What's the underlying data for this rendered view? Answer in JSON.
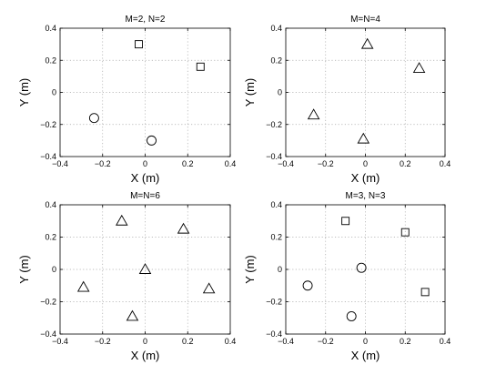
{
  "chart_data": [
    {
      "type": "scatter",
      "title": "M=2, N=2",
      "xlabel": "X (m)",
      "ylabel": "Y (m)",
      "xlim": [
        -0.4,
        0.4
      ],
      "ylim": [
        -0.4,
        0.4
      ],
      "xticks": [
        -0.4,
        -0.2,
        0,
        0.2,
        0.4
      ],
      "yticks": [
        -0.4,
        -0.2,
        0,
        0.2,
        0.4
      ],
      "xtick_labels": [
        "−0.4",
        "−0.2",
        "0",
        "0.2",
        "0.4"
      ],
      "ytick_labels": [
        "−0.4",
        "−0.2",
        "0",
        "0.2",
        "0.4"
      ],
      "grid": true,
      "series": [
        {
          "marker": "square",
          "points": [
            {
              "x": -0.03,
              "y": 0.3
            },
            {
              "x": 0.26,
              "y": 0.16
            }
          ]
        },
        {
          "marker": "circle",
          "points": [
            {
              "x": -0.24,
              "y": -0.16
            },
            {
              "x": 0.03,
              "y": -0.3
            }
          ]
        }
      ]
    },
    {
      "type": "scatter",
      "title": "M=N=4",
      "xlabel": "X (m)",
      "ylabel": "Y (m)",
      "xlim": [
        -0.4,
        0.4
      ],
      "ylim": [
        -0.4,
        0.4
      ],
      "xticks": [
        -0.4,
        -0.2,
        0,
        0.2,
        0.4
      ],
      "yticks": [
        -0.4,
        -0.2,
        0,
        0.2,
        0.4
      ],
      "xtick_labels": [
        "−0.4",
        "−0.2",
        "0",
        "0.2",
        "0.4"
      ],
      "ytick_labels": [
        "−0.4",
        "−0.2",
        "0",
        "0.2",
        "0.4"
      ],
      "grid": true,
      "series": [
        {
          "marker": "triangle",
          "points": [
            {
              "x": 0.01,
              "y": 0.3
            },
            {
              "x": 0.27,
              "y": 0.15
            },
            {
              "x": -0.26,
              "y": -0.14
            },
            {
              "x": -0.01,
              "y": -0.29
            }
          ]
        }
      ]
    },
    {
      "type": "scatter",
      "title": "M=N=6",
      "xlabel": "X (m)",
      "ylabel": "Y (m)",
      "xlim": [
        -0.4,
        0.4
      ],
      "ylim": [
        -0.4,
        0.4
      ],
      "xticks": [
        -0.4,
        -0.2,
        0,
        0.2,
        0.4
      ],
      "yticks": [
        -0.4,
        -0.2,
        0,
        0.2,
        0.4
      ],
      "xtick_labels": [
        "−0.4",
        "−0.2",
        "0",
        "0.2",
        "0.4"
      ],
      "ytick_labels": [
        "−0.4",
        "−0.2",
        "0",
        "0.2",
        "0.4"
      ],
      "grid": true,
      "series": [
        {
          "marker": "triangle",
          "points": [
            {
              "x": -0.11,
              "y": 0.3
            },
            {
              "x": 0.18,
              "y": 0.25
            },
            {
              "x": 0.0,
              "y": 0.0
            },
            {
              "x": -0.29,
              "y": -0.11
            },
            {
              "x": 0.3,
              "y": -0.12
            },
            {
              "x": -0.06,
              "y": -0.29
            }
          ]
        }
      ]
    },
    {
      "type": "scatter",
      "title": "M=3, N=3",
      "xlabel": "X (m)",
      "ylabel": "Y (m)",
      "xlim": [
        -0.4,
        0.4
      ],
      "ylim": [
        -0.4,
        0.4
      ],
      "xticks": [
        -0.4,
        -0.2,
        0,
        0.2,
        0.4
      ],
      "yticks": [
        -0.4,
        -0.2,
        0,
        0.2,
        0.4
      ],
      "xtick_labels": [
        "−0.4",
        "−0.2",
        "0",
        "0.2",
        "0.4"
      ],
      "ytick_labels": [
        "−0.4",
        "−0.2",
        "0",
        "0.2",
        "0.4"
      ],
      "grid": true,
      "series": [
        {
          "marker": "square",
          "points": [
            {
              "x": -0.1,
              "y": 0.3
            },
            {
              "x": 0.2,
              "y": 0.23
            },
            {
              "x": 0.3,
              "y": -0.14
            }
          ]
        },
        {
          "marker": "circle",
          "points": [
            {
              "x": -0.02,
              "y": 0.01
            },
            {
              "x": -0.29,
              "y": -0.1
            },
            {
              "x": -0.07,
              "y": -0.29
            }
          ]
        }
      ]
    }
  ]
}
